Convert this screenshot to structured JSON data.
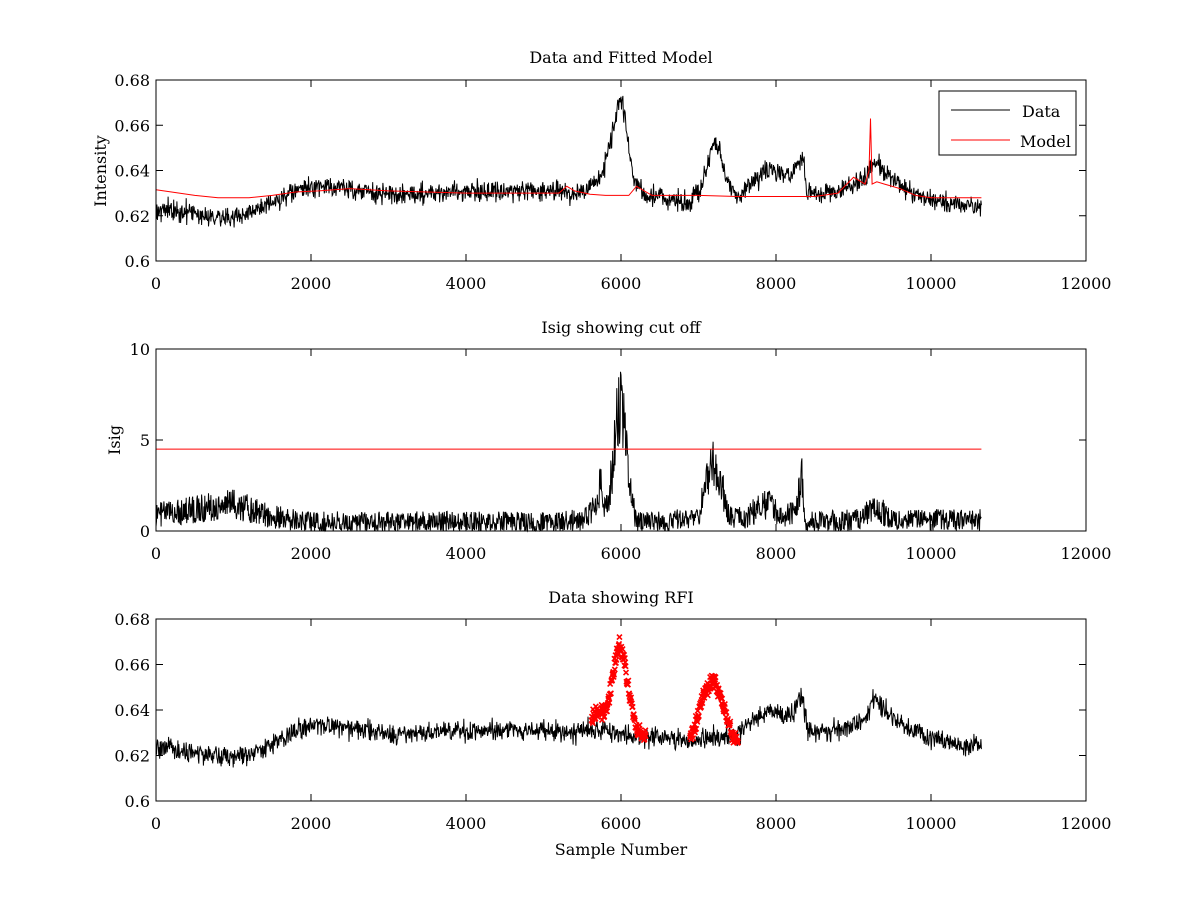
{
  "chart_data": [
    {
      "type": "line",
      "title": "Data and Fitted Model",
      "xlabel": "",
      "ylabel": "Intensity",
      "xlim": [
        0,
        12000
      ],
      "ylim": [
        0.6,
        0.68
      ],
      "xticks": [
        "0",
        "2000",
        "4000",
        "6000",
        "8000",
        "10000",
        "12000"
      ],
      "yticks": [
        "0.6",
        "0.62",
        "0.64",
        "0.66",
        "0.68"
      ],
      "grid": false,
      "legend": "top-right",
      "series": [
        {
          "name": "Data",
          "color": "#000000",
          "style": "noisy-line",
          "noise": 0.0045,
          "x": [
            0,
            500,
            1000,
            1500,
            1800,
            2100,
            2500,
            3000,
            3500,
            4000,
            4500,
            5000,
            5400,
            5600,
            5750,
            5850,
            5950,
            6000,
            6050,
            6150,
            6300,
            6500,
            6800,
            7000,
            7100,
            7200,
            7300,
            7400,
            7500,
            7700,
            7900,
            8100,
            8200,
            8300,
            8350,
            8400,
            8600,
            8800,
            9000,
            9150,
            9250,
            9300,
            9400,
            9600,
            9800,
            10000,
            10300,
            10650
          ],
          "y": [
            0.623,
            0.621,
            0.619,
            0.625,
            0.631,
            0.633,
            0.632,
            0.629,
            0.63,
            0.631,
            0.631,
            0.631,
            0.63,
            0.632,
            0.637,
            0.65,
            0.668,
            0.673,
            0.663,
            0.638,
            0.628,
            0.629,
            0.626,
            0.629,
            0.64,
            0.653,
            0.646,
            0.632,
            0.629,
            0.635,
            0.64,
            0.638,
            0.637,
            0.645,
            0.645,
            0.631,
            0.63,
            0.631,
            0.633,
            0.637,
            0.642,
            0.645,
            0.64,
            0.634,
            0.63,
            0.627,
            0.625,
            0.624
          ]
        },
        {
          "name": "Model",
          "color": "#ff0000",
          "style": "line",
          "x": [
            0,
            500,
            800,
            1200,
            1500,
            1800,
            2100,
            2500,
            3000,
            4000,
            5000,
            5200,
            5300,
            5400,
            5600,
            5800,
            6000,
            6100,
            6200,
            6300,
            6400,
            6600,
            7000,
            7500,
            8000,
            8500,
            8800,
            9000,
            9150,
            9200,
            9220,
            9240,
            9300,
            9400,
            9600,
            9800,
            10000,
            10300,
            10650
          ],
          "y": [
            0.6315,
            0.629,
            0.628,
            0.628,
            0.629,
            0.6305,
            0.631,
            0.632,
            0.631,
            0.63,
            0.63,
            0.63,
            0.633,
            0.631,
            0.6295,
            0.629,
            0.629,
            0.629,
            0.633,
            0.631,
            0.629,
            0.629,
            0.629,
            0.6285,
            0.6285,
            0.6285,
            0.63,
            0.637,
            0.634,
            0.64,
            0.663,
            0.634,
            0.635,
            0.634,
            0.632,
            0.629,
            0.628,
            0.628,
            0.628
          ]
        }
      ]
    },
    {
      "type": "line",
      "title": "Isig showing cut off",
      "xlabel": "",
      "ylabel": "Isig",
      "xlim": [
        0,
        12000
      ],
      "ylim": [
        0,
        10
      ],
      "xticks": [
        "0",
        "2000",
        "4000",
        "6000",
        "8000",
        "10000",
        "12000"
      ],
      "yticks": [
        "0",
        "5",
        "10"
      ],
      "grid": false,
      "series": [
        {
          "name": "",
          "color": "#000000",
          "style": "noisy-abs",
          "noise": 1.1,
          "x": [
            0,
            500,
            1000,
            1500,
            2000,
            3000,
            4000,
            5000,
            5500,
            5650,
            5750,
            5800,
            5880,
            5950,
            6000,
            6050,
            6100,
            6200,
            6500,
            7000,
            7100,
            7200,
            7300,
            7400,
            7600,
            7900,
            8100,
            8250,
            8330,
            8380,
            8500,
            9000,
            9300,
            9500,
            10000,
            10650
          ],
          "y": [
            0.9,
            1.2,
            1.5,
            0.8,
            0.5,
            0.5,
            0.5,
            0.5,
            0.6,
            1.2,
            2.8,
            1.0,
            3.0,
            6.5,
            7.0,
            5.5,
            2.5,
            0.5,
            0.5,
            0.8,
            2.5,
            3.8,
            2.5,
            0.7,
            0.8,
            1.5,
            0.8,
            1.0,
            3.0,
            0.6,
            0.5,
            0.6,
            1.3,
            0.6,
            0.6,
            0.6
          ]
        },
        {
          "name": "",
          "color": "#ff0000",
          "style": "line",
          "x": [
            0,
            10650
          ],
          "y": [
            4.5,
            4.5
          ]
        }
      ]
    },
    {
      "type": "line",
      "title": "Data showing RFI",
      "xlabel": "Sample Number",
      "ylabel": "",
      "xlim": [
        0,
        12000
      ],
      "ylim": [
        0.6,
        0.68
      ],
      "xticks": [
        "0",
        "2000",
        "4000",
        "6000",
        "8000",
        "10000",
        "12000"
      ],
      "yticks": [
        "0.6",
        "0.62",
        "0.64",
        "0.66",
        "0.68"
      ],
      "grid": false,
      "series": [
        {
          "name": "",
          "color": "#000000",
          "style": "noisy-line",
          "noise": 0.0045,
          "x": [
            0,
            500,
            1000,
            1500,
            1800,
            2100,
            2500,
            3000,
            3500,
            4000,
            4500,
            5000,
            5400,
            5600,
            6300,
            6500,
            6800,
            6900,
            7500,
            7700,
            7900,
            8100,
            8200,
            8300,
            8350,
            8400,
            8600,
            8800,
            9000,
            9150,
            9250,
            9300,
            9400,
            9600,
            9800,
            10000,
            10300,
            10650
          ],
          "y": [
            0.623,
            0.621,
            0.619,
            0.625,
            0.631,
            0.633,
            0.632,
            0.629,
            0.63,
            0.631,
            0.631,
            0.631,
            0.63,
            0.632,
            0.628,
            0.628,
            0.626,
            0.627,
            0.629,
            0.635,
            0.64,
            0.638,
            0.637,
            0.645,
            0.645,
            0.631,
            0.63,
            0.631,
            0.633,
            0.637,
            0.645,
            0.645,
            0.64,
            0.634,
            0.63,
            0.627,
            0.625,
            0.624
          ]
        },
        {
          "name": "",
          "color": "#ff0000",
          "style": "markers",
          "noise": 0.004,
          "segments": [
            {
              "x": [
                5620,
                5700,
                5780,
                5850,
                5920,
                5980,
                6050,
                6120,
                6200,
                6320
              ],
              "y": [
                0.636,
                0.64,
                0.638,
                0.646,
                0.66,
                0.67,
                0.66,
                0.644,
                0.632,
                0.628
              ]
            },
            {
              "x": [
                6890,
                6950,
                7050,
                7150,
                7200,
                7260,
                7350,
                7450,
                7510
              ],
              "y": [
                0.628,
                0.632,
                0.645,
                0.652,
                0.653,
                0.648,
                0.638,
                0.628,
                0.626
              ]
            }
          ]
        }
      ]
    }
  ]
}
